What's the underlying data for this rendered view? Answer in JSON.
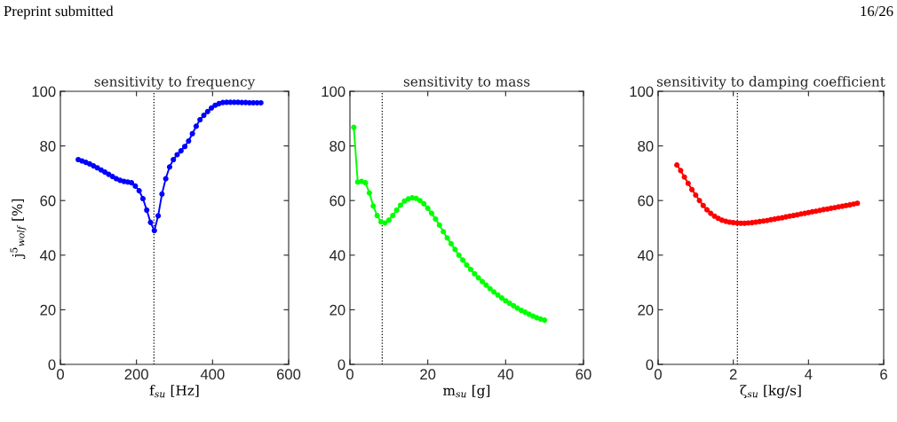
{
  "chart_data": [
    {
      "type": "line",
      "title": "sensitivity to frequency",
      "xlabel": "f$_{su}$ [Hz]",
      "ylabel": "j$^{5}$$_{wolf}$ [%]",
      "marker": "circle",
      "line_style": "solid",
      "grid": false,
      "annotations": [
        "Preprint submitted",
        "16/26"
      ],
      "xlim": [
        0,
        600
      ],
      "xticks": [
        0,
        200,
        400,
        600
      ],
      "ylim": [
        0,
        100
      ],
      "yticks": [
        0,
        20,
        40,
        60,
        80,
        100
      ],
      "ref_lines": [
        {
          "axis": "x",
          "value": 246,
          "color": "#000000",
          "line_style": "dotted"
        }
      ],
      "series": [
        {
          "color": "#0000ff",
          "x": [
            47,
            57,
            67,
            77,
            87,
            97,
            107,
            117,
            127,
            137,
            147,
            157,
            167,
            177,
            187,
            197,
            207,
            217,
            227,
            237,
            247,
            257,
            267,
            277,
            287,
            297,
            307,
            317,
            327,
            337,
            347,
            357,
            367,
            377,
            387,
            397,
            407,
            417,
            427,
            437,
            447,
            457,
            467,
            477,
            487,
            497,
            507,
            517,
            527
          ],
          "values": [
            75,
            74.5,
            74,
            73.4,
            72.7,
            72,
            71.2,
            70.4,
            69.6,
            68.8,
            68,
            67.4,
            67,
            66.8,
            66.5,
            65.3,
            63.6,
            60.7,
            56.5,
            52,
            49,
            54.4,
            62.4,
            68,
            72.3,
            75,
            76.8,
            78.2,
            79.8,
            81.8,
            84.5,
            87.2,
            89.6,
            91.2,
            92.6,
            93.9,
            94.9,
            95.5,
            95.9,
            96,
            96,
            96,
            96,
            95.9,
            95.9,
            95.8,
            95.8,
            95.8,
            95.8
          ]
        }
      ]
    },
    {
      "type": "line",
      "title": "sensitivity to mass",
      "xlabel": "m$_{su}$ [g]",
      "marker": "circle",
      "line_style": "solid",
      "grid": false,
      "xlim": [
        0,
        60
      ],
      "xticks": [
        0,
        20,
        40,
        60
      ],
      "ylim": [
        0,
        100
      ],
      "yticks": [
        0,
        20,
        40,
        60,
        80,
        100
      ],
      "ref_lines": [
        {
          "axis": "x",
          "value": 8.3,
          "color": "#000000",
          "line_style": "dotted"
        }
      ],
      "series": [
        {
          "color": "#00ff00",
          "x": [
            1,
            2,
            3,
            4,
            5,
            6,
            7,
            8,
            9,
            10,
            11,
            12,
            13,
            14,
            15,
            16,
            17,
            18,
            19,
            20,
            21,
            22,
            23,
            24,
            25,
            26,
            27,
            28,
            29,
            30,
            31,
            32,
            33,
            34,
            35,
            36,
            37,
            38,
            39,
            40,
            41,
            42,
            43,
            44,
            45,
            46,
            47,
            48,
            49,
            50
          ],
          "values": [
            86.8,
            66.8,
            67,
            66.5,
            62.8,
            58,
            54.5,
            52.2,
            51.8,
            52.8,
            54.5,
            56.5,
            58.3,
            59.8,
            60.6,
            61,
            60.8,
            60,
            58.8,
            57.2,
            55.3,
            53.2,
            51,
            48.6,
            46.3,
            44.2,
            42.1,
            40,
            38.2,
            36.4,
            34.8,
            33.2,
            31.7,
            30.3,
            29,
            27.7,
            26.5,
            25.4,
            24.3,
            23.3,
            22.4,
            21.5,
            20.6,
            19.8,
            19.1,
            18.4,
            17.7,
            17.1,
            16.6,
            16.2
          ]
        }
      ]
    },
    {
      "type": "line",
      "title": "sensitivity to damping coefficient",
      "xlabel": "ζ$_{su}$ [kg/s]",
      "marker": "circle",
      "line_style": "solid",
      "grid": false,
      "xlim": [
        0,
        6
      ],
      "xticks": [
        0,
        2,
        4,
        6
      ],
      "ylim": [
        0,
        100
      ],
      "yticks": [
        0,
        20,
        40,
        60,
        80,
        100
      ],
      "ref_lines": [
        {
          "axis": "x",
          "value": 2.11,
          "color": "#000000",
          "line_style": "dotted"
        }
      ],
      "series": [
        {
          "color": "#ff0000",
          "x": [
            0.5,
            0.6,
            0.7,
            0.8,
            0.9,
            1.0,
            1.1,
            1.2,
            1.3,
            1.4,
            1.5,
            1.6,
            1.7,
            1.8,
            1.9,
            2.0,
            2.1,
            2.2,
            2.3,
            2.4,
            2.5,
            2.6,
            2.7,
            2.8,
            2.9,
            3.0,
            3.1,
            3.2,
            3.3,
            3.4,
            3.5,
            3.6,
            3.7,
            3.8,
            3.9,
            4.0,
            4.1,
            4.2,
            4.3,
            4.4,
            4.5,
            4.6,
            4.7,
            4.8,
            4.9,
            5.0,
            5.1,
            5.2,
            5.3
          ],
          "values": [
            73,
            71,
            68.6,
            66.3,
            64,
            62,
            60,
            58.2,
            56.6,
            55.3,
            54.3,
            53.5,
            52.8,
            52.4,
            52.1,
            51.9,
            51.8,
            51.7,
            51.7,
            51.8,
            51.9,
            52.1,
            52.3,
            52.5,
            52.7,
            53,
            53.2,
            53.5,
            53.7,
            54,
            54.3,
            54.5,
            54.8,
            55.1,
            55.3,
            55.6,
            55.9,
            56.1,
            56.4,
            56.7,
            56.9,
            57.2,
            57.4,
            57.7,
            57.9,
            58.2,
            58.4,
            58.7,
            59
          ]
        }
      ]
    }
  ]
}
